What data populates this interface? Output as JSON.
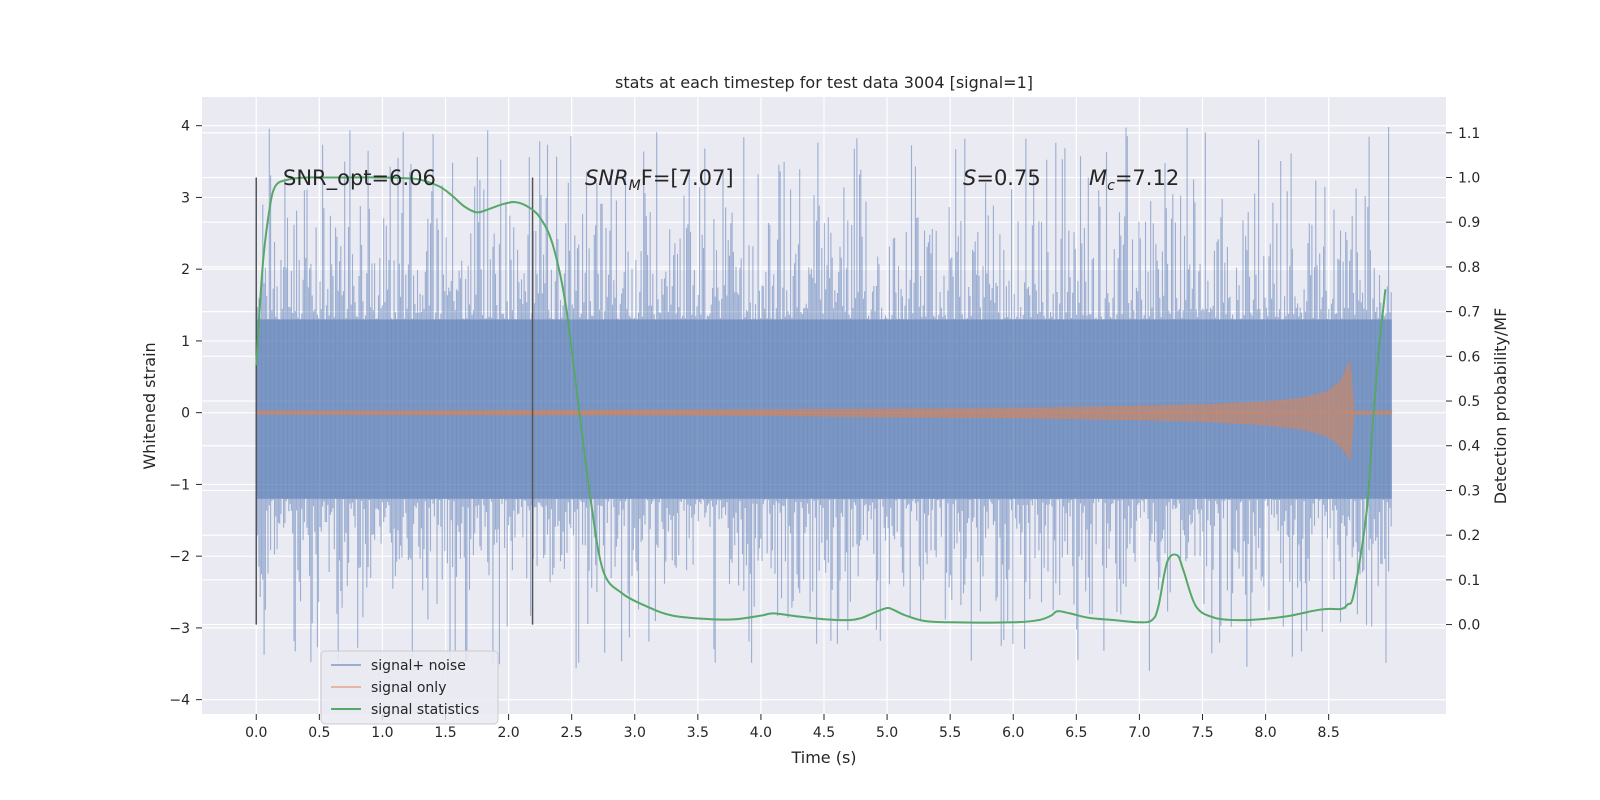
{
  "chart_data": {
    "type": "line",
    "title": "stats at each timestep for test data 3004 [signal=1]",
    "xlabel": "Time (s)",
    "ylabel": "Whitened strain",
    "ylabel_right": "Detection probability/MF",
    "xlim": [
      -0.43,
      9.43
    ],
    "ylim": [
      -4.2,
      4.4
    ],
    "ylim_right": [
      -0.2,
      1.18
    ],
    "xticks": [
      0.0,
      0.5,
      1.0,
      1.5,
      2.0,
      2.5,
      3.0,
      3.5,
      4.0,
      4.5,
      5.0,
      5.5,
      6.0,
      6.5,
      7.0,
      7.5,
      8.0,
      8.5
    ],
    "xtick_labels": [
      "0.0",
      "0.5",
      "1.0",
      "1.5",
      "2.0",
      "2.5",
      "3.0",
      "3.5",
      "4.0",
      "4.5",
      "5.0",
      "5.5",
      "6.0",
      "6.5",
      "7.0",
      "7.5",
      "8.0",
      "8.5"
    ],
    "yticks": [
      4,
      3,
      2,
      1,
      0,
      -1,
      -2,
      -3,
      -4
    ],
    "ytick_labels": [
      "4",
      "3",
      "2",
      "1",
      "0",
      "−1",
      "−2",
      "−3",
      "−4"
    ],
    "yticks_right": [
      1.1,
      1.0,
      0.9,
      0.8,
      0.7,
      0.6,
      0.5,
      0.4,
      0.3,
      0.2,
      0.1,
      0.0
    ],
    "ytick_labels_right": [
      "1.1",
      "1.0",
      "0.9",
      "0.8",
      "0.7",
      "0.6",
      "0.5",
      "0.4",
      "0.3",
      "0.2",
      "0.1",
      "0.0"
    ],
    "grid": true,
    "legend_position": "lower-left",
    "legend": [
      "signal+ noise",
      "signal only",
      "signal statistics"
    ],
    "colors": {
      "noise": "#4c72b0",
      "signal": "#dd8452",
      "stats": "#55a868",
      "background": "#eaeaf2",
      "vline": "#555555"
    },
    "annotations": {
      "snr_opt": "SNR_opt=6.06",
      "snr_mf_main": "SNR",
      "snr_mf_sub": "M",
      "snr_mf_rest": "F=[7.07]",
      "s_main": "S",
      "s_rest": "=0.75",
      "mc_main": "M",
      "mc_sub": "c",
      "mc_rest": "=7.12"
    },
    "vertical_lines_x": [
      0.0,
      2.19
    ],
    "series": [
      {
        "name": "signal+ noise",
        "axis": "left",
        "t_range": [
          0.0,
          9.0
        ],
        "core_envelope": [
          -1.2,
          1.3
        ],
        "spike_envelope": [
          -3.6,
          4.0
        ]
      },
      {
        "name": "signal only",
        "axis": "left",
        "envelope_t": [
          0.0,
          2.0,
          4.0,
          5.0,
          6.0,
          7.0,
          7.5,
          8.0,
          8.3,
          8.5,
          8.6,
          8.65,
          8.67,
          8.7,
          9.0
        ],
        "envelope_upper": [
          0.02,
          0.03,
          0.04,
          0.05,
          0.06,
          0.09,
          0.11,
          0.15,
          0.2,
          0.3,
          0.45,
          0.65,
          0.7,
          0.02,
          0.02
        ],
        "envelope_lower": [
          -0.02,
          -0.03,
          -0.04,
          -0.06,
          -0.07,
          -0.1,
          -0.12,
          -0.17,
          -0.23,
          -0.33,
          -0.48,
          -0.6,
          -0.65,
          -0.02,
          -0.02
        ]
      },
      {
        "name": "signal statistics",
        "axis": "right",
        "t": [
          0.0,
          0.05,
          0.1,
          0.15,
          0.25,
          0.4,
          0.6,
          1.0,
          1.2,
          1.3,
          1.45,
          1.55,
          1.65,
          1.75,
          1.85,
          1.95,
          2.05,
          2.15,
          2.25,
          2.35,
          2.45,
          2.55,
          2.65,
          2.75,
          2.9,
          3.1,
          3.3,
          3.6,
          3.8,
          4.0,
          4.1,
          4.3,
          4.5,
          4.7,
          4.8,
          4.9,
          5.0,
          5.05,
          5.15,
          5.3,
          5.5,
          6.0,
          6.2,
          6.3,
          6.35,
          6.45,
          6.6,
          6.8,
          7.0,
          7.1,
          7.15,
          7.22,
          7.3,
          7.35,
          7.45,
          7.6,
          7.8,
          8.0,
          8.2,
          8.4,
          8.5,
          8.6,
          8.65,
          8.7,
          8.8,
          8.85,
          8.9,
          8.95
        ],
        "values": [
          0.58,
          0.8,
          0.92,
          0.98,
          0.995,
          1.0,
          1.0,
          1.0,
          0.998,
          0.995,
          0.98,
          0.96,
          0.935,
          0.922,
          0.93,
          0.94,
          0.945,
          0.935,
          0.91,
          0.85,
          0.72,
          0.5,
          0.28,
          0.12,
          0.07,
          0.04,
          0.02,
          0.012,
          0.012,
          0.02,
          0.025,
          0.018,
          0.012,
          0.01,
          0.015,
          0.027,
          0.037,
          0.033,
          0.02,
          0.008,
          0.005,
          0.005,
          0.01,
          0.02,
          0.03,
          0.025,
          0.015,
          0.01,
          0.005,
          0.01,
          0.04,
          0.14,
          0.155,
          0.12,
          0.04,
          0.015,
          0.01,
          0.013,
          0.02,
          0.032,
          0.035,
          0.035,
          0.045,
          0.07,
          0.25,
          0.45,
          0.62,
          0.75
        ]
      }
    ]
  }
}
